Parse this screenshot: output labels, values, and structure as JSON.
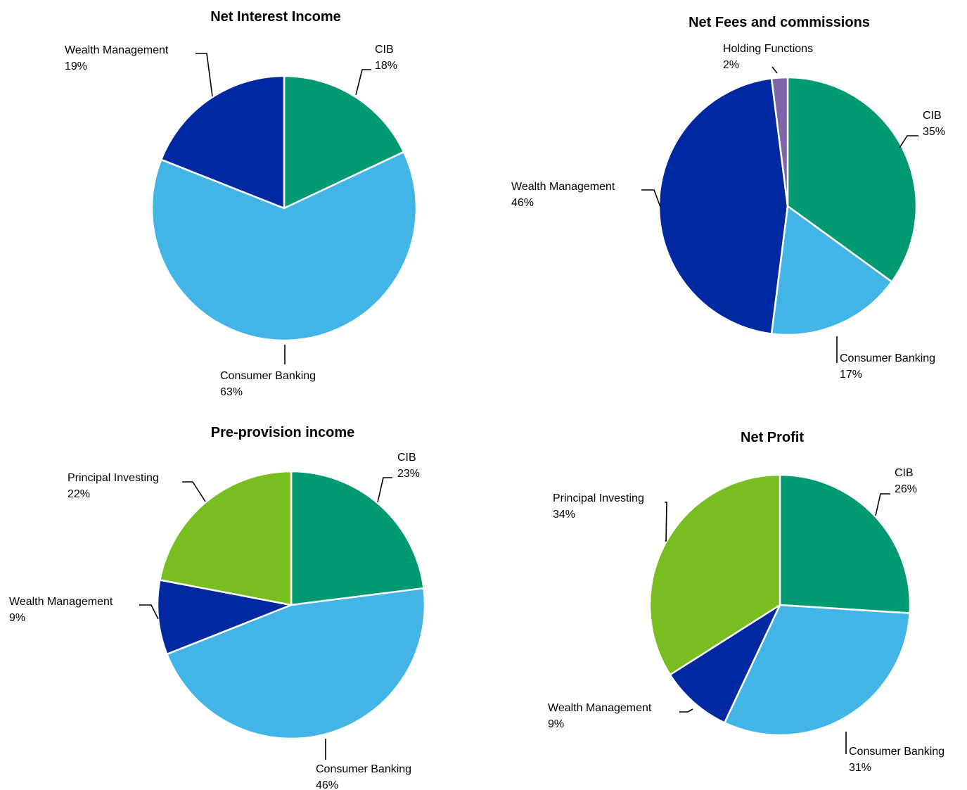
{
  "chart_data": [
    {
      "type": "pie",
      "title": "Net Interest Income",
      "slices": [
        {
          "name": "CIB",
          "value": 18,
          "value_label": "18%",
          "color": "#009A72"
        },
        {
          "name": "Consumer Banking",
          "value": 63,
          "value_label": "63%",
          "color": "#43B4E6"
        },
        {
          "name": "Wealth Management",
          "value": 19,
          "value_label": "19%",
          "color": "#0028A0"
        }
      ]
    },
    {
      "type": "pie",
      "title": "Net Fees and commissions",
      "slices": [
        {
          "name": "CIB",
          "value": 35,
          "value_label": "35%",
          "color": "#009A72"
        },
        {
          "name": "Consumer Banking",
          "value": 17,
          "value_label": "17%",
          "color": "#43B4E6"
        },
        {
          "name": "Wealth Management",
          "value": 46,
          "value_label": "46%",
          "color": "#0028A0"
        },
        {
          "name": "Holding Functions",
          "value": 2,
          "value_label": "2%",
          "color": "#7D65A8"
        }
      ]
    },
    {
      "type": "pie",
      "title": "Pre-provision income",
      "slices": [
        {
          "name": "CIB",
          "value": 23,
          "value_label": "23%",
          "color": "#009A72"
        },
        {
          "name": "Consumer Banking",
          "value": 46,
          "value_label": "46%",
          "color": "#43B4E6"
        },
        {
          "name": "Wealth Management",
          "value": 9,
          "value_label": "9%",
          "color": "#0028A0"
        },
        {
          "name": "Principal Investing",
          "value": 22,
          "value_label": "22%",
          "color": "#78BE20"
        }
      ]
    },
    {
      "type": "pie",
      "title": "Net Profit",
      "slices": [
        {
          "name": "CIB",
          "value": 26,
          "value_label": "26%",
          "color": "#009A72"
        },
        {
          "name": "Consumer Banking",
          "value": 31,
          "value_label": "31%",
          "color": "#43B4E6"
        },
        {
          "name": "Wealth Management",
          "value": 9,
          "value_label": "9%",
          "color": "#0028A0"
        },
        {
          "name": "Principal Investing",
          "value": 34,
          "value_label": "34%",
          "color": "#78BE20"
        }
      ]
    }
  ]
}
